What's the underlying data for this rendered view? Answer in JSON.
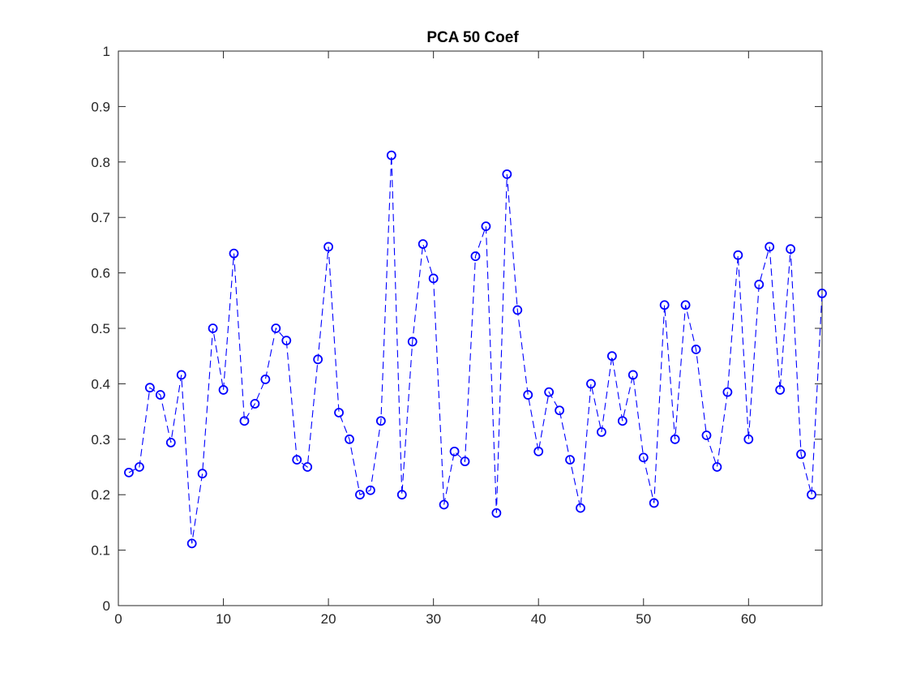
{
  "chart_data": {
    "type": "line",
    "title": "PCA 50 Coef",
    "xlabel": "",
    "ylabel": "",
    "xlim": [
      0,
      67
    ],
    "ylim": [
      0,
      1
    ],
    "xticks": [
      0,
      10,
      20,
      30,
      40,
      50,
      60
    ],
    "yticks": [
      0,
      0.1,
      0.2,
      0.3,
      0.4,
      0.5,
      0.6,
      0.7,
      0.8,
      0.9,
      1
    ],
    "xtick_labels": [
      "0",
      "10",
      "20",
      "30",
      "40",
      "50",
      "60"
    ],
    "ytick_labels": [
      "0",
      "0.1",
      "0.2",
      "0.3",
      "0.4",
      "0.5",
      "0.6",
      "0.7",
      "0.8",
      "0.9",
      "1"
    ],
    "grid": false,
    "line_style": "dashed",
    "marker": "circle",
    "color": "#0000ff",
    "series": [
      {
        "x": [
          1,
          2,
          3,
          4,
          5,
          6,
          7,
          8,
          9,
          10,
          11,
          12,
          13,
          14,
          15,
          16,
          17,
          18,
          19,
          20,
          21,
          22,
          23,
          24,
          25,
          26,
          27,
          28,
          29,
          30,
          31,
          32,
          33,
          34,
          35,
          36,
          37,
          38,
          39,
          40,
          41,
          42,
          43,
          44,
          45,
          46,
          47,
          48,
          49,
          50,
          51,
          52,
          53,
          54,
          55,
          56,
          57,
          58,
          59,
          60,
          61,
          62,
          63,
          64,
          65,
          66,
          67
        ],
        "values": [
          0.24,
          0.25,
          0.393,
          0.38,
          0.294,
          0.416,
          0.112,
          0.238,
          0.5,
          0.389,
          0.635,
          0.333,
          0.364,
          0.408,
          0.5,
          0.478,
          0.263,
          0.25,
          0.444,
          0.647,
          0.348,
          0.3,
          0.2,
          0.208,
          0.333,
          0.812,
          0.2,
          0.476,
          0.652,
          0.59,
          0.182,
          0.278,
          0.26,
          0.63,
          0.684,
          0.167,
          0.778,
          0.533,
          0.38,
          0.278,
          0.385,
          0.352,
          0.263,
          0.176,
          0.4,
          0.313,
          0.45,
          0.333,
          0.416,
          0.267,
          0.185,
          0.542,
          0.3,
          0.542,
          0.462,
          0.307,
          0.25,
          0.385,
          0.632,
          0.3,
          0.579,
          0.647,
          0.389,
          0.643,
          0.273,
          0.2,
          0.563
        ]
      }
    ]
  }
}
